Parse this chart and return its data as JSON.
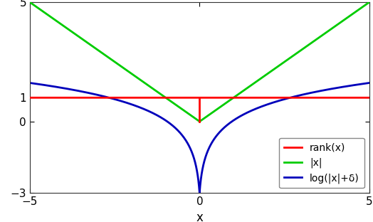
{
  "xlim": [
    -5,
    5
  ],
  "ylim": [
    -3,
    5
  ],
  "xlabel": "x",
  "delta": 0.05,
  "rank_value": 1.0,
  "line_colors": {
    "rank": "#ff0000",
    "abs": "#00cc00",
    "log": "#0000bb"
  },
  "line_width": 2.0,
  "legend_labels": [
    "rank(x)",
    "|x|",
    "log(|x|+δ)"
  ],
  "yticks": [
    -3,
    0,
    1,
    5
  ],
  "xticks": [
    -5,
    0,
    5
  ],
  "bg_color": "#ffffff",
  "tick_fontsize": 11,
  "label_fontsize": 12,
  "legend_fontsize": 10
}
